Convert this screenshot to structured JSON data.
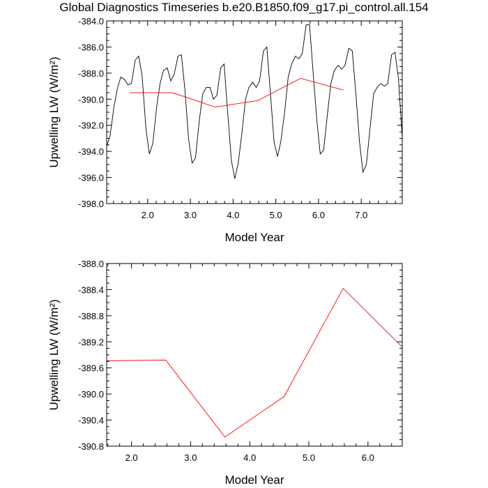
{
  "title": "Global Diagnostics Timeseries b.e20.B1850.f09_g17.pi_control.all.154",
  "colors": {
    "monthly": "#000000",
    "annual": "#ff0000",
    "axes": "#000000"
  },
  "chart_data": [
    {
      "type": "line",
      "xlabel": "Model Year",
      "ylabel": "Upwelling LW (W/m²)",
      "xlim": [
        1.04,
        7.96
      ],
      "ylim": [
        -398.0,
        -384.0
      ],
      "x_ticks": [
        2.0,
        3.0,
        4.0,
        5.0,
        6.0,
        7.0
      ],
      "x_tick_labels": [
        "2.0",
        "3.0",
        "4.0",
        "5.0",
        "6.0",
        "7.0"
      ],
      "y_ticks": [
        -384.0,
        -386.0,
        -388.0,
        -390.0,
        -392.0,
        -394.0,
        -396.0,
        -398.0
      ],
      "y_tick_labels": [
        "-384.0",
        "-386.0",
        "-388.0",
        "-390.0",
        "-392.0",
        "-394.0",
        "-396.0",
        "-398.0"
      ],
      "series": [
        {
          "color": "#000000",
          "x": [
            1.04,
            1.12,
            1.21,
            1.29,
            1.37,
            1.46,
            1.54,
            1.62,
            1.71,
            1.79,
            1.87,
            1.96,
            2.04,
            2.12,
            2.21,
            2.29,
            2.37,
            2.46,
            2.54,
            2.62,
            2.71,
            2.79,
            2.87,
            2.96,
            3.04,
            3.12,
            3.21,
            3.29,
            3.37,
            3.46,
            3.54,
            3.62,
            3.71,
            3.79,
            3.87,
            3.96,
            4.04,
            4.12,
            4.21,
            4.29,
            4.37,
            4.46,
            4.54,
            4.62,
            4.71,
            4.79,
            4.87,
            4.96,
            5.04,
            5.12,
            5.21,
            5.29,
            5.37,
            5.46,
            5.54,
            5.62,
            5.71,
            5.79,
            5.87,
            5.96,
            6.04,
            6.12,
            6.21,
            6.29,
            6.37,
            6.46,
            6.54,
            6.62,
            6.71,
            6.79,
            6.87,
            6.96,
            7.04,
            7.12,
            7.21,
            7.29,
            7.37,
            7.46,
            7.54,
            7.62,
            7.71,
            7.79,
            7.87,
            7.96
          ],
          "values": [
            -393.6,
            -392.8,
            -390.6,
            -389.2,
            -388.3,
            -388.5,
            -388.9,
            -388.8,
            -387.0,
            -386.7,
            -388.2,
            -392.3,
            -394.2,
            -393.4,
            -390.6,
            -388.8,
            -387.8,
            -387.6,
            -388.6,
            -388.1,
            -386.7,
            -386.6,
            -389.2,
            -393.1,
            -394.9,
            -394.5,
            -391.6,
            -389.6,
            -389.1,
            -389.1,
            -390.0,
            -389.7,
            -387.6,
            -387.3,
            -390.9,
            -394.7,
            -396.1,
            -394.9,
            -392.5,
            -390.0,
            -389.1,
            -388.7,
            -389.1,
            -388.6,
            -386.3,
            -386.0,
            -389.4,
            -393.3,
            -394.4,
            -393.2,
            -390.9,
            -388.3,
            -387.3,
            -386.7,
            -386.9,
            -386.5,
            -384.3,
            -384.3,
            -387.8,
            -391.6,
            -394.2,
            -393.9,
            -391.1,
            -388.8,
            -387.8,
            -387.4,
            -387.7,
            -387.4,
            -386.1,
            -386.3,
            -389.4,
            -393.3,
            -395.6,
            -395.0,
            -392.1,
            -389.6,
            -389.1,
            -388.8,
            -389.0,
            -388.8,
            -386.6,
            -386.4,
            -388.4,
            -392.9
          ]
        },
        {
          "color": "#ff0000",
          "x": [
            1.58,
            2.58,
            3.58,
            4.58,
            5.58,
            6.58
          ],
          "values": [
            -389.5,
            -389.5,
            -390.6,
            -390.1,
            -388.4,
            -389.3
          ]
        }
      ]
    },
    {
      "type": "line",
      "xlabel": "Model Year",
      "ylabel": "Upwelling LW (W/m²)",
      "xlim": [
        1.58,
        6.58
      ],
      "ylim": [
        -390.8,
        -388.0
      ],
      "x_ticks": [
        2.0,
        3.0,
        4.0,
        5.0,
        6.0
      ],
      "x_tick_labels": [
        "2.0",
        "3.0",
        "4.0",
        "5.0",
        "6.0"
      ],
      "y_ticks": [
        -388.0,
        -388.4,
        -388.8,
        -389.2,
        -389.6,
        -390.0,
        -390.4,
        -390.8
      ],
      "y_tick_labels": [
        "-388.0",
        "-388.4",
        "-388.8",
        "-389.2",
        "-389.6",
        "-390.0",
        "-390.4",
        "-390.8"
      ],
      "series": [
        {
          "color": "#ff0000",
          "x": [
            1.58,
            2.58,
            3.58,
            4.58,
            5.58,
            6.58
          ],
          "values": [
            -389.49,
            -389.48,
            -390.66,
            -390.04,
            -388.38,
            -389.28
          ]
        }
      ]
    }
  ]
}
